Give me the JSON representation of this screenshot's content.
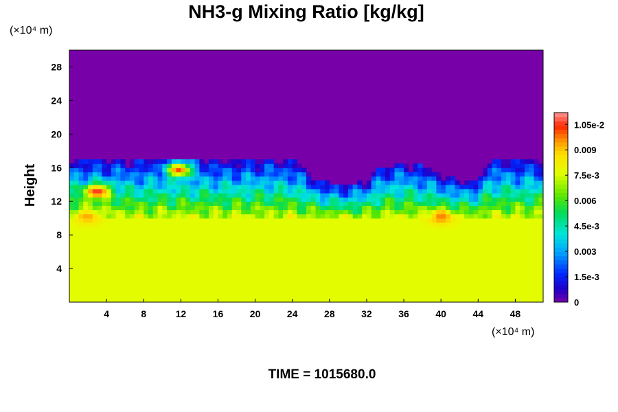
{
  "chart_data": {
    "type": "heatmap",
    "title": "NH3-g Mixing Ratio [kg/kg]",
    "ylabel": "Height",
    "x_unit": "(×10⁴ m)",
    "y_unit": "(×10⁴ m)",
    "xlim": [
      0,
      51
    ],
    "ylim": [
      0,
      30
    ],
    "x_ticks": [
      4,
      8,
      12,
      16,
      20,
      24,
      28,
      32,
      36,
      40,
      44,
      48
    ],
    "y_ticks": [
      4,
      8,
      12,
      16,
      20,
      24,
      28
    ],
    "colorbar": {
      "min": 0,
      "max": 0.0112,
      "tick_values": [
        0,
        0.0015,
        0.003,
        0.0045,
        0.006,
        0.0075,
        0.009,
        0.0105
      ],
      "tick_labels": [
        "0",
        "1.5e-3",
        "0.003",
        "4.5e-3",
        "0.006",
        "7.5e-3",
        "0.009",
        "1.05e-2"
      ]
    },
    "field": {
      "lower_layer": {
        "y_range": [
          0,
          9.8
        ],
        "value": 0.0077
      },
      "upper_layer": {
        "y_min": 17,
        "value": 0.0
      },
      "layer_top_profile": {
        "x": [
          0,
          3,
          6,
          9,
          12,
          15,
          18,
          21,
          24,
          25,
          26,
          28,
          30,
          32,
          33,
          34,
          36,
          38,
          40,
          42,
          44,
          45,
          46,
          48,
          51
        ],
        "top": [
          17.2,
          17.2,
          17.0,
          17.0,
          17.1,
          17.0,
          17.0,
          17.1,
          17.0,
          16.2,
          15.0,
          14.2,
          14.1,
          14.5,
          15.7,
          16.4,
          16.8,
          16.2,
          15.3,
          14.5,
          14.7,
          16.8,
          17.2,
          17.0,
          17.0
        ]
      },
      "hotspots": [
        {
          "x": 3,
          "y": 13.2,
          "value": 0.0108
        },
        {
          "x": 11.8,
          "y": 15.8,
          "value": 0.0102
        },
        {
          "x": 40,
          "y": 10.2,
          "value": 0.0097
        },
        {
          "x": 2,
          "y": 10.2,
          "value": 0.0093
        }
      ]
    }
  },
  "footer": {
    "time_label": "TIME = 1015680.0"
  }
}
